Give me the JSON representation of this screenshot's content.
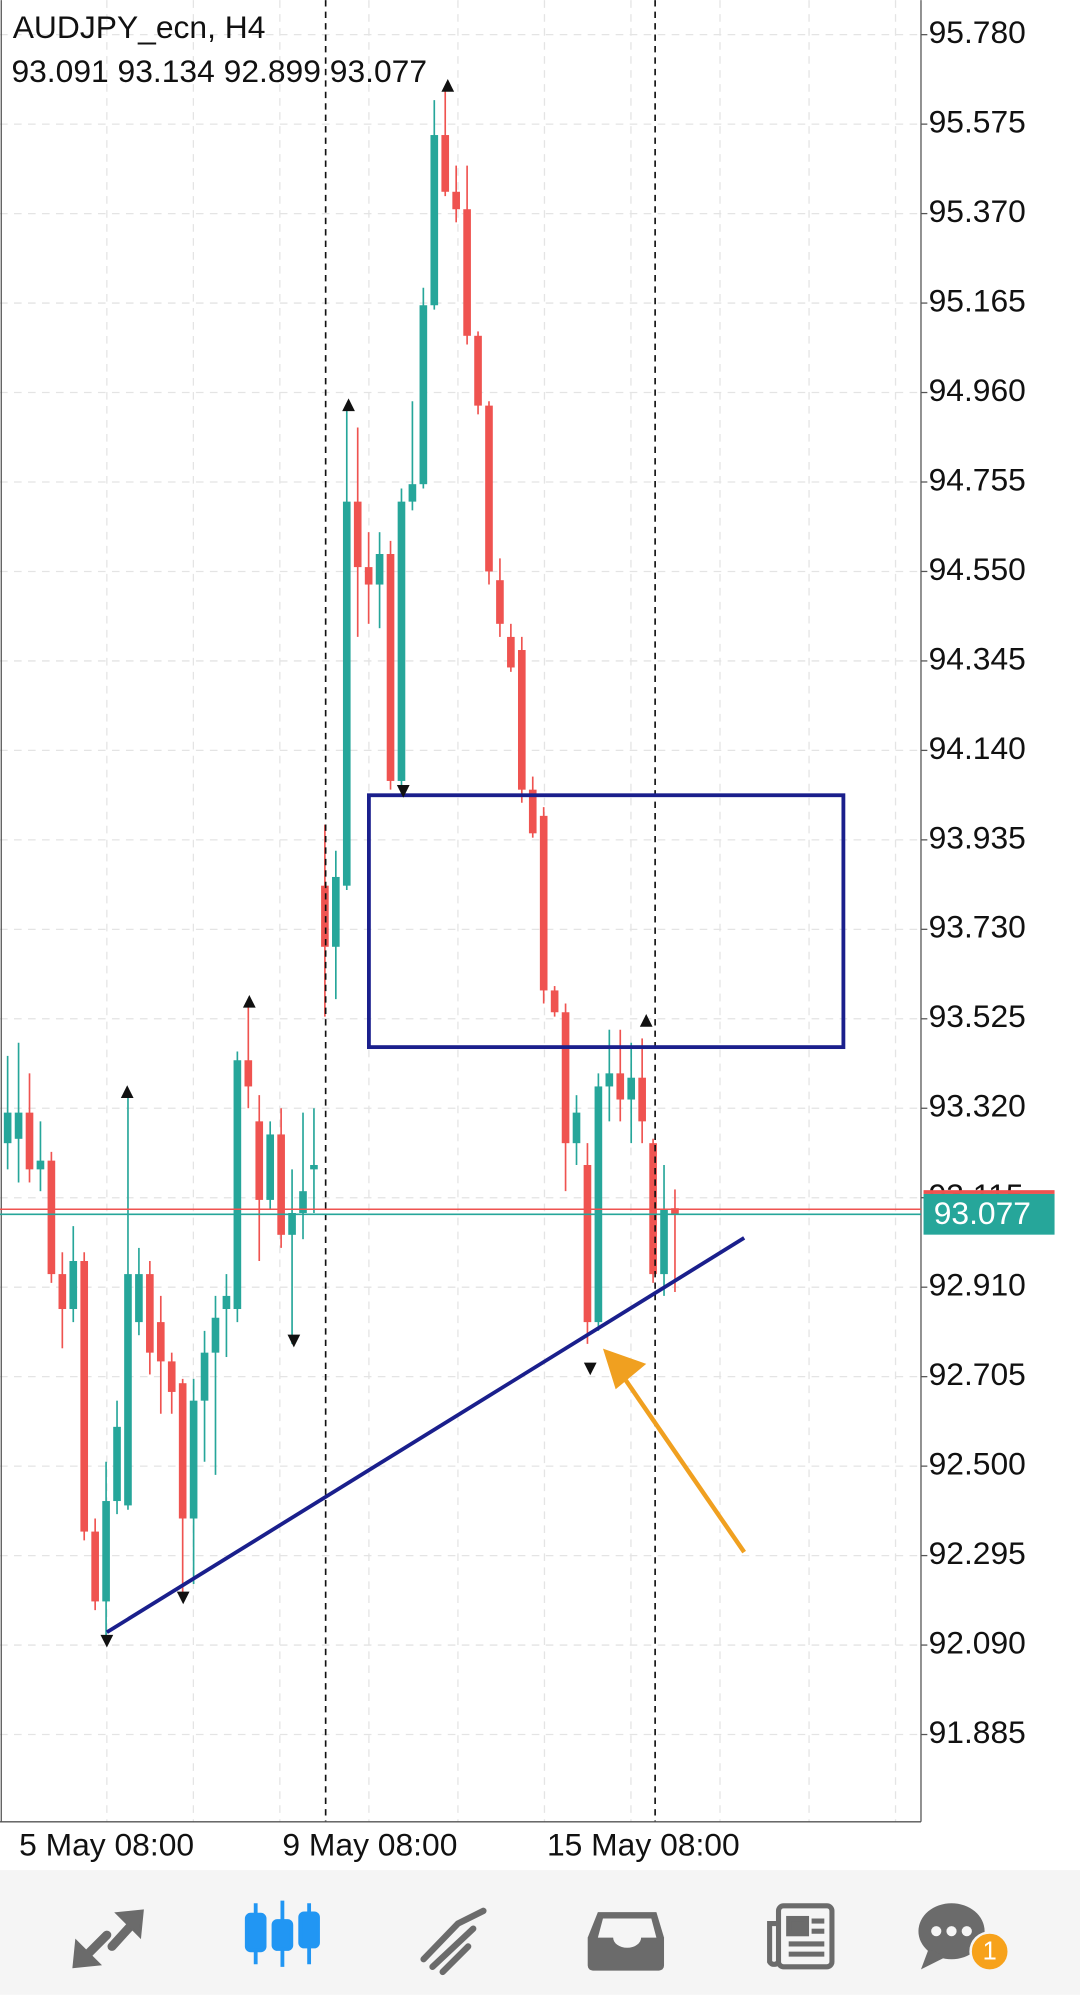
{
  "chart_data": {
    "type": "candlestick",
    "title": "AUDJPY_ecn, H4",
    "open": [
      93.24,
      93.25,
      93.31,
      93.18,
      93.2,
      92.94,
      92.86,
      92.97,
      92.35,
      92.19,
      92.42,
      92.41,
      92.83,
      92.94,
      92.83,
      92.74,
      92.69,
      92.38,
      92.65,
      92.76,
      92.86,
      92.86,
      93.43,
      93.29,
      93.11,
      93.26,
      93.03,
      93.08,
      93.18,
      93.83,
      93.69,
      93.83,
      94.71,
      94.56,
      94.52,
      94.59,
      94.07,
      94.71,
      94.75,
      95.16,
      95.55,
      95.42,
      95.38,
      95.09,
      94.93,
      94.53,
      94.4,
      94.37,
      94.05,
      93.99,
      93.59,
      93.54,
      93.24,
      93.19,
      92.83,
      93.37,
      93.4,
      93.34,
      93.39,
      93.24,
      92.94,
      93.091
    ],
    "high": [
      93.44,
      93.47,
      93.4,
      93.29,
      93.22,
      92.99,
      93.05,
      92.99,
      92.38,
      92.51,
      92.65,
      93.35,
      93.0,
      92.97,
      92.89,
      92.76,
      92.7,
      92.7,
      92.81,
      92.89,
      92.94,
      93.45,
      93.56,
      93.35,
      93.29,
      93.32,
      93.18,
      93.31,
      93.32,
      93.97,
      93.91,
      94.93,
      94.88,
      94.64,
      94.64,
      94.62,
      94.74,
      94.94,
      95.2,
      95.63,
      95.65,
      95.48,
      95.48,
      95.1,
      94.94,
      94.58,
      94.43,
      94.4,
      94.08,
      94.01,
      93.6,
      93.56,
      93.35,
      93.24,
      93.4,
      93.5,
      93.5,
      93.47,
      93.48,
      93.25,
      93.19,
      93.134
    ],
    "low": [
      93.18,
      93.15,
      93.15,
      93.13,
      92.92,
      92.77,
      92.83,
      92.33,
      92.17,
      92.11,
      92.39,
      92.4,
      92.8,
      92.71,
      92.62,
      92.62,
      92.2,
      92.23,
      92.51,
      92.48,
      92.75,
      92.83,
      93.32,
      92.97,
      93.09,
      93.0,
      92.78,
      93.02,
      93.08,
      93.53,
      93.57,
      93.82,
      94.4,
      94.43,
      94.42,
      94.05,
      94.04,
      94.69,
      94.74,
      95.15,
      95.41,
      95.35,
      95.07,
      94.91,
      94.52,
      94.4,
      94.32,
      94.02,
      93.94,
      93.56,
      93.53,
      93.13,
      93.19,
      92.78,
      92.81,
      93.29,
      93.29,
      93.24,
      93.24,
      92.92,
      92.89,
      92.899
    ],
    "close": [
      93.31,
      93.31,
      93.18,
      93.2,
      92.94,
      92.86,
      92.97,
      92.35,
      92.19,
      92.42,
      92.59,
      92.94,
      92.94,
      92.76,
      92.74,
      92.67,
      92.38,
      92.65,
      92.76,
      92.84,
      92.89,
      93.43,
      93.37,
      93.11,
      93.26,
      93.03,
      93.08,
      93.13,
      93.19,
      93.69,
      93.85,
      94.71,
      94.56,
      94.52,
      94.59,
      94.07,
      94.71,
      94.75,
      95.16,
      95.55,
      95.42,
      95.38,
      95.09,
      94.93,
      94.55,
      94.43,
      94.33,
      94.05,
      93.95,
      93.59,
      93.54,
      93.24,
      93.31,
      92.83,
      93.37,
      93.4,
      93.34,
      93.39,
      93.29,
      92.94,
      93.09,
      93.077
    ],
    "up_color": "#26a69a",
    "down_color": "#ef5350",
    "ylim": [
      91.685,
      95.859
    ],
    "yticks": [
      {
        "value": 95.78,
        "label": "95.780"
      },
      95.575,
      {
        "value": 95.37,
        "label": "95.370"
      },
      95.165,
      {
        "value": 94.96,
        "label": "94.960"
      },
      94.755,
      {
        "value": 94.55,
        "label": "94.550"
      },
      94.345,
      {
        "value": 94.14,
        "label": "94.140"
      },
      93.935,
      {
        "value": 93.73,
        "label": "93.730"
      },
      93.525,
      {
        "value": 93.32,
        "label": "93.320"
      },
      93.115,
      {
        "value": 92.91,
        "label": "92.910"
      },
      92.705,
      {
        "value": 92.5,
        "label": "92.500"
      },
      92.295,
      {
        "value": 92.09,
        "label": "92.090"
      },
      91.885
    ],
    "x_labels": [
      "5 May 08:00",
      "9 May 08:00",
      "15 May 08:00"
    ],
    "grid": true
  },
  "toolbar": {
    "badge": "1"
  }
}
